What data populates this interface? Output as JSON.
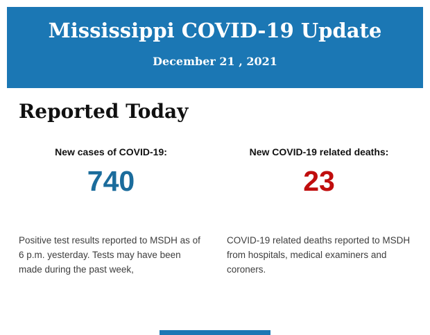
{
  "colors": {
    "header_bg": "#1b77b4",
    "cases_number": "#1b6c9c",
    "deaths_number": "#c00d0d",
    "heading_text": "#101010",
    "label_text": "#111111",
    "body_text": "#3d3d3d"
  },
  "header": {
    "title": "Mississippi COVID-19 Update",
    "date": "December 21 , 2021"
  },
  "main": {
    "section_heading": "Reported Today",
    "stats": [
      {
        "label": "New cases of COVID-19:",
        "value": "740",
        "description": "Positive test results reported to MSDH as of 6 p.m. yesterday. Tests may have been made during the past week,"
      },
      {
        "label": "New COVID-19 related deaths:",
        "value": "23",
        "description": "COVID-19 related deaths reported to MSDH from hospitals, medical examiners and coroners."
      }
    ]
  }
}
